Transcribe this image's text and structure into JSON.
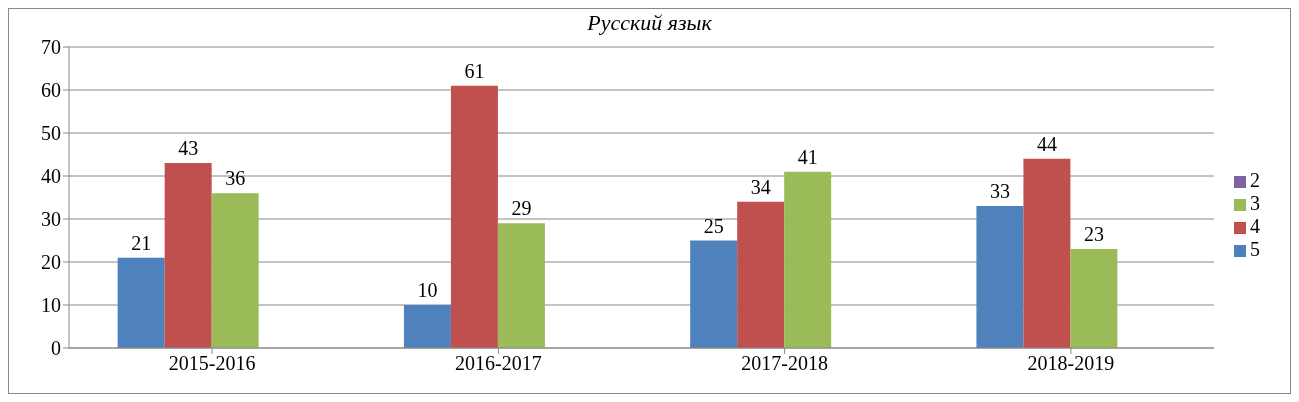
{
  "chart_data": {
    "type": "bar",
    "title": "Русский язык",
    "categories": [
      "2015-2016",
      "2016-2017",
      "2017-2018",
      "2018-2019"
    ],
    "series": [
      {
        "name": "5",
        "color": "#4f81bd",
        "values": [
          21,
          10,
          25,
          33
        ]
      },
      {
        "name": "4",
        "color": "#c0504d",
        "values": [
          43,
          61,
          34,
          44
        ]
      },
      {
        "name": "3",
        "color": "#9bbb59",
        "values": [
          36,
          29,
          41,
          23
        ]
      },
      {
        "name": "2",
        "color": "#8064a2",
        "values": [
          null,
          null,
          null,
          null
        ]
      }
    ],
    "ylim": [
      0,
      70
    ],
    "yticks": [
      0,
      10,
      20,
      30,
      40,
      50,
      60,
      70
    ],
    "grid": "y",
    "legend": "right",
    "data_labels": true
  }
}
